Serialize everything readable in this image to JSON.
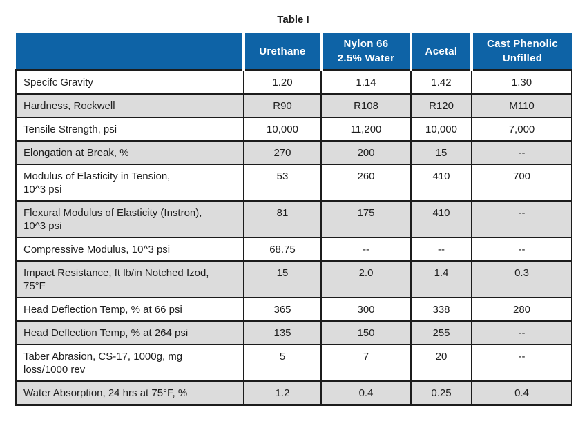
{
  "page": {
    "title": "Table I"
  },
  "colors": {
    "header_bg": "#0e63a6",
    "header_text": "#ffffff",
    "alt_row_bg": "#dcdcdc",
    "row_bg": "#ffffff",
    "border": "#1c1c1c",
    "text": "#1e1e1e"
  },
  "table": {
    "columns": [
      "",
      "Urethane",
      "Nylon 66\n2.5% Water",
      "Acetal",
      "Cast Phenolic\nUnfilled"
    ],
    "rows": [
      {
        "label": "Specifc Gravity",
        "values": [
          "1.20",
          "1.14",
          "1.42",
          "1.30"
        ]
      },
      {
        "label": "Hardness, Rockwell",
        "values": [
          "R90",
          "R108",
          "R120",
          "M110"
        ]
      },
      {
        "label": "Tensile Strength, psi",
        "values": [
          "10,000",
          "11,200",
          "10,000",
          "7,000"
        ]
      },
      {
        "label": "Elongation at Break, %",
        "values": [
          "270",
          "200",
          "15",
          "--"
        ]
      },
      {
        "label": "Modulus of Elasticity in Tension,\n10^3 psi",
        "values": [
          "53",
          "260",
          "410",
          "700"
        ]
      },
      {
        "label": "Flexural Modulus of Elasticity (Instron),\n10^3 psi",
        "values": [
          "81",
          "175",
          "410",
          "--"
        ]
      },
      {
        "label": "Compressive Modulus, 10^3 psi",
        "values": [
          "68.75",
          "--",
          "--",
          "--"
        ]
      },
      {
        "label": "Impact Resistance, ft lb/in Notched Izod,\n75°F",
        "values": [
          "15",
          "2.0",
          "1.4",
          "0.3"
        ]
      },
      {
        "label": "Head Deflection Temp, % at 66 psi",
        "values": [
          "365",
          "300",
          "338",
          "280"
        ]
      },
      {
        "label": "Head Deflection Temp, % at 264 psi",
        "values": [
          "135",
          "150",
          "255",
          "--"
        ]
      },
      {
        "label": "Taber Abrasion, CS-17, 1000g, mg\nloss/1000 rev",
        "values": [
          "5",
          "7",
          "20",
          "--"
        ]
      },
      {
        "label": "Water Absorption, 24 hrs at 75°F, %",
        "values": [
          "1.2",
          "0.4",
          "0.25",
          "0.4"
        ]
      }
    ]
  }
}
